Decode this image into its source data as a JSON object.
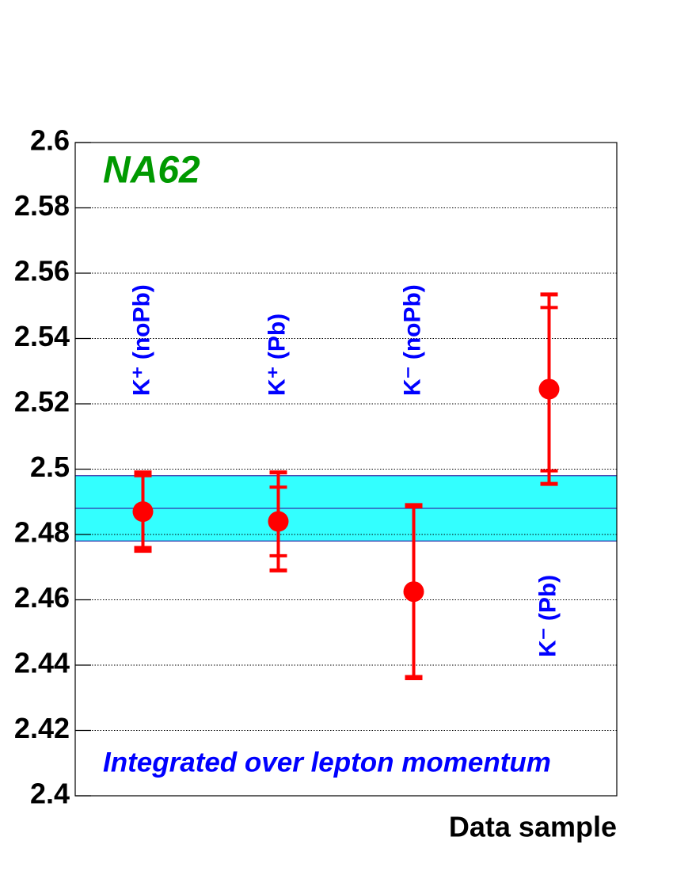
{
  "chart_data": {
    "type": "errorbar",
    "title": "NA62",
    "annotation": "Integrated over lepton momentum",
    "x_label": "Data sample",
    "categories": [
      "K⁺ (noPb)",
      "K⁺ (Pb)",
      "K⁻ (noPb)",
      "K⁻ (Pb)"
    ],
    "values": [
      2.487,
      2.484,
      2.4625,
      2.5245
    ],
    "errors_stat": [
      0.011,
      0.0105,
      0.026,
      0.025
    ],
    "errors_total": [
      0.012,
      0.015,
      0.0265,
      0.029
    ],
    "color": "#ff0000",
    "band": {
      "center": 2.488,
      "lower": 2.478,
      "upper": 2.498,
      "color": "#33ffff",
      "line_color": "#3333aa"
    },
    "ylim": [
      2.4,
      2.6
    ],
    "yticks": [
      2.4,
      2.42,
      2.44,
      2.46,
      2.48,
      2.5,
      2.52,
      2.54,
      2.56,
      2.58,
      2.6
    ],
    "grid": true
  }
}
